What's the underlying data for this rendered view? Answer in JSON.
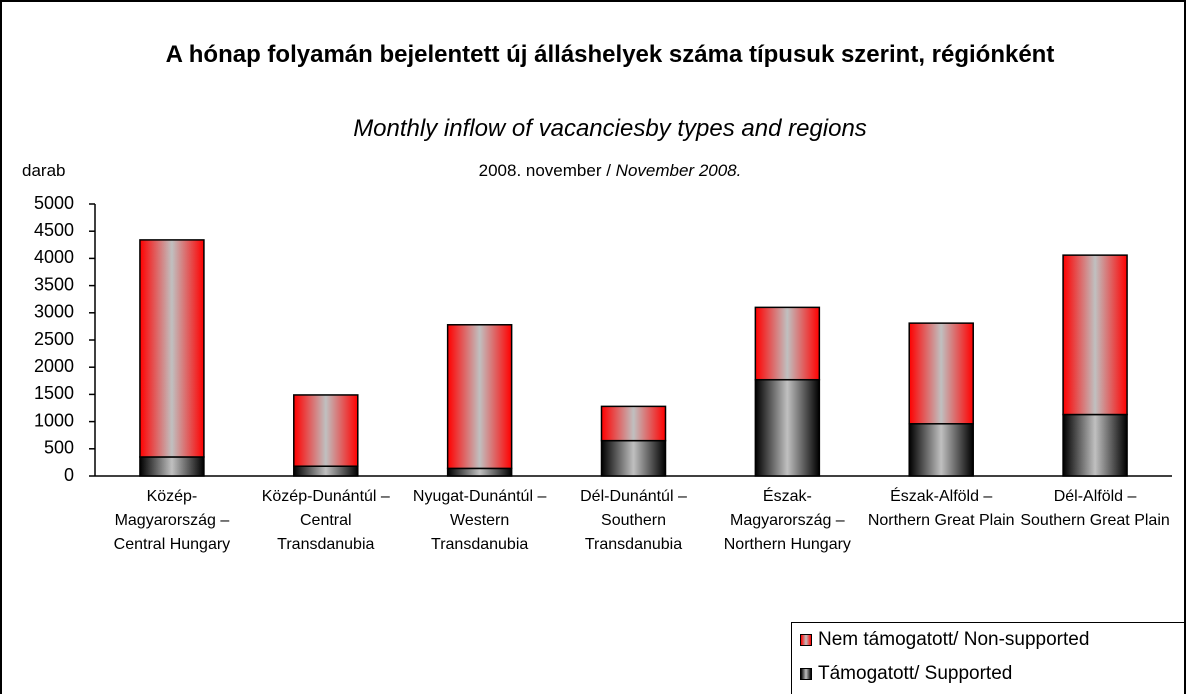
{
  "chart_data": {
    "type": "stacked_bar",
    "title": "A hónap folyamán bejelentett új álláshelyek száma típusuk szerint, régiónként",
    "subtitle": "Monthly inflow of vacanciesby types and regions",
    "date_hu": "2008. november /",
    "date_en": "November 2008.",
    "y_label": "darab",
    "categories": [
      "Közép-Magyarország – Central Hungary",
      "Közép-Dunántúl – Central Transdanubia",
      "Nyugat-Dunántúl – Western Transdanubia",
      "Dél-Dunántúl – Southern Transdanubia",
      "Észak-Magyarország – Northern Hungary",
      "Észak-Alföld – Northern Great Plain",
      "Dél-Alföld – Southern Great Plain"
    ],
    "series": [
      {
        "name": "Támogatott/ Supported",
        "color": "#000000",
        "values": [
          350,
          180,
          140,
          650,
          1770,
          960,
          1130
        ]
      },
      {
        "name": "Nem támogatott/ Non-supported",
        "color": "#ff0000",
        "values": [
          3990,
          1310,
          2640,
          630,
          1330,
          1850,
          2930
        ]
      }
    ],
    "ylim": [
      0,
      5000
    ],
    "yticks": [
      0,
      500,
      1000,
      1500,
      2000,
      2500,
      3000,
      3500,
      4000,
      4500,
      5000
    ],
    "grid": false,
    "legend": "bottom-right"
  }
}
